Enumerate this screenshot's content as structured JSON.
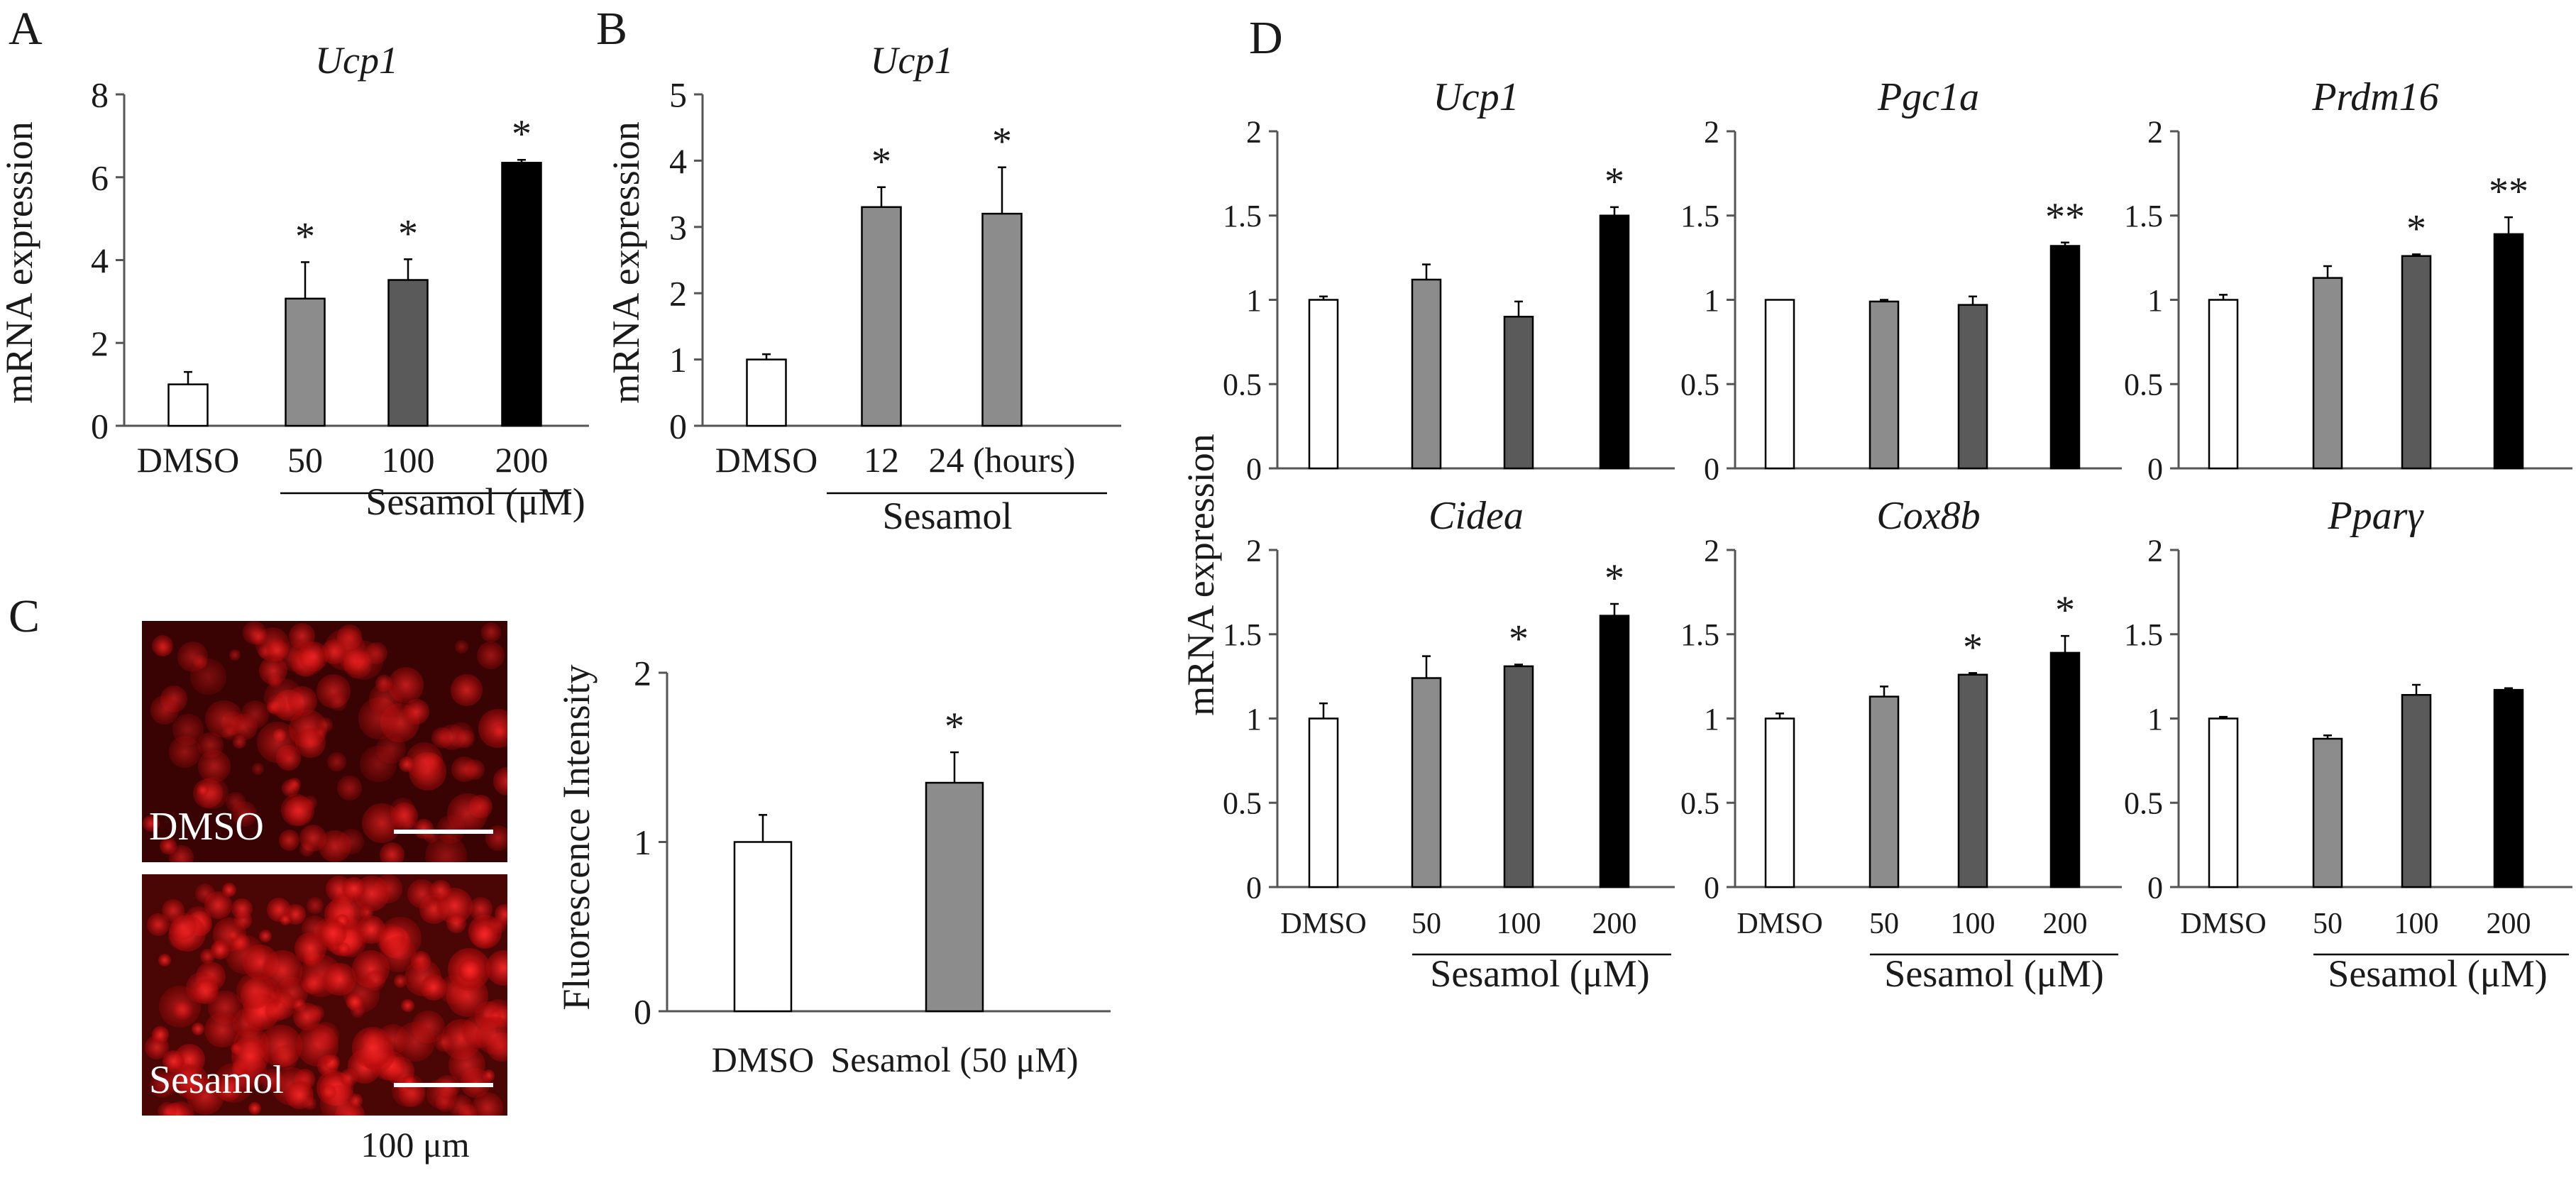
{
  "panel_labels": {
    "a": "A",
    "b": "B",
    "c": "C",
    "d": "D"
  },
  "mrna_axis_label": "mRNA expression",
  "fluorescence_axis_label": "Fluorescence Intensity",
  "microscopy": {
    "dmso_label": "DMSO",
    "sesamol_label": "Sesamol",
    "scale_text": "100 μm"
  },
  "chart_data": [
    {
      "id": "A",
      "type": "bar",
      "title": "Ucp1",
      "ylabel": "mRNA expression",
      "categories": [
        "DMSO",
        "50",
        "100",
        "200"
      ],
      "values": [
        1.0,
        3.07,
        3.52,
        6.35
      ],
      "errors": [
        0.3,
        0.88,
        0.5,
        0.07
      ],
      "significance": [
        "",
        "*",
        "*",
        "*"
      ],
      "bar_colors": [
        "#ffffff",
        "#8c8c8c",
        "#5a5a5a",
        "#000000"
      ],
      "ylim": [
        0,
        8
      ],
      "yticks": [
        0,
        2,
        4,
        6,
        8
      ],
      "group_label": "Sesamol (μM)"
    },
    {
      "id": "B",
      "type": "bar",
      "title": "Ucp1",
      "ylabel": "mRNA expression",
      "categories": [
        "DMSO",
        "12",
        "24 (hours)"
      ],
      "values": [
        1.0,
        3.3,
        3.2
      ],
      "errors": [
        0.08,
        0.3,
        0.7
      ],
      "significance": [
        "",
        "*",
        "*"
      ],
      "bar_colors": [
        "#ffffff",
        "#8c8c8c",
        "#8c8c8c"
      ],
      "ylim": [
        0,
        5
      ],
      "yticks": [
        0,
        1,
        2,
        3,
        4,
        5
      ],
      "group_label": "Sesamol"
    },
    {
      "id": "C",
      "type": "bar",
      "title": "",
      "ylabel": "Fluorescence Intensity",
      "categories": [
        "DMSO",
        "Sesamol (50 μM)"
      ],
      "values": [
        1.0,
        1.35
      ],
      "errors": [
        0.16,
        0.18
      ],
      "significance": [
        "",
        "*"
      ],
      "bar_colors": [
        "#ffffff",
        "#8c8c8c"
      ],
      "ylim": [
        0,
        2
      ],
      "yticks": [
        0,
        1,
        2
      ],
      "group_label": ""
    },
    {
      "id": "D1",
      "type": "bar",
      "title": "Ucp1",
      "categories": [
        "DMSO",
        "50",
        "100",
        "200"
      ],
      "values": [
        1.0,
        1.12,
        0.9,
        1.5
      ],
      "errors": [
        0.02,
        0.09,
        0.09,
        0.05
      ],
      "significance": [
        "",
        "",
        "",
        "*"
      ],
      "bar_colors": [
        "#ffffff",
        "#8c8c8c",
        "#5a5a5a",
        "#000000"
      ],
      "ylim": [
        0,
        2
      ],
      "yticks": [
        0,
        0.5,
        1,
        1.5,
        2
      ],
      "group_label": ""
    },
    {
      "id": "D2",
      "type": "bar",
      "title": "Pgc1a",
      "categories": [
        "DMSO",
        "50",
        "100",
        "200"
      ],
      "values": [
        1.0,
        0.99,
        0.97,
        1.32
      ],
      "errors": [
        0.0,
        0.01,
        0.05,
        0.02
      ],
      "significance": [
        "",
        "",
        "",
        "**"
      ],
      "bar_colors": [
        "#ffffff",
        "#8c8c8c",
        "#5a5a5a",
        "#000000"
      ],
      "ylim": [
        0,
        2
      ],
      "yticks": [
        0,
        0.5,
        1,
        1.5,
        2
      ],
      "group_label": ""
    },
    {
      "id": "D3",
      "type": "bar",
      "title": "Prdm16",
      "categories": [
        "DMSO",
        "50",
        "100",
        "200"
      ],
      "values": [
        1.0,
        1.13,
        1.26,
        1.39
      ],
      "errors": [
        0.03,
        0.07,
        0.01,
        0.1
      ],
      "significance": [
        "",
        "",
        "*",
        "**"
      ],
      "bar_colors": [
        "#ffffff",
        "#8c8c8c",
        "#5a5a5a",
        "#000000"
      ],
      "ylim": [
        0,
        2
      ],
      "yticks": [
        0,
        0.5,
        1,
        1.5,
        2
      ],
      "group_label": ""
    },
    {
      "id": "D4",
      "type": "bar",
      "title": "Cidea",
      "categories": [
        "DMSO",
        "50",
        "100",
        "200"
      ],
      "values": [
        1.0,
        1.24,
        1.31,
        1.61
      ],
      "errors": [
        0.09,
        0.13,
        0.01,
        0.07
      ],
      "significance": [
        "",
        "",
        "*",
        "*"
      ],
      "bar_colors": [
        "#ffffff",
        "#8c8c8c",
        "#5a5a5a",
        "#000000"
      ],
      "ylim": [
        0,
        2
      ],
      "yticks": [
        0,
        0.5,
        1,
        1.5,
        2
      ],
      "group_label": "Sesamol (μM)"
    },
    {
      "id": "D5",
      "type": "bar",
      "title": "Cox8b",
      "categories": [
        "DMSO",
        "50",
        "100",
        "200"
      ],
      "values": [
        1.0,
        1.13,
        1.26,
        1.39
      ],
      "errors": [
        0.03,
        0.06,
        0.01,
        0.1
      ],
      "significance": [
        "",
        "",
        "*",
        "*"
      ],
      "bar_colors": [
        "#ffffff",
        "#8c8c8c",
        "#5a5a5a",
        "#000000"
      ],
      "ylim": [
        0,
        2
      ],
      "yticks": [
        0,
        0.5,
        1,
        1.5,
        2
      ],
      "group_label": "Sesamol (μM)"
    },
    {
      "id": "D6",
      "type": "bar",
      "title": "Pparγ",
      "categories": [
        "DMSO",
        "50",
        "100",
        "200"
      ],
      "values": [
        1.0,
        0.88,
        1.14,
        1.17
      ],
      "errors": [
        0.01,
        0.02,
        0.06,
        0.01
      ],
      "significance": [
        "",
        "",
        "",
        ""
      ],
      "bar_colors": [
        "#ffffff",
        "#8c8c8c",
        "#5a5a5a",
        "#000000"
      ],
      "ylim": [
        0,
        2
      ],
      "yticks": [
        0,
        0.5,
        1,
        1.5,
        2
      ],
      "group_label": "Sesamol (μM)"
    }
  ]
}
